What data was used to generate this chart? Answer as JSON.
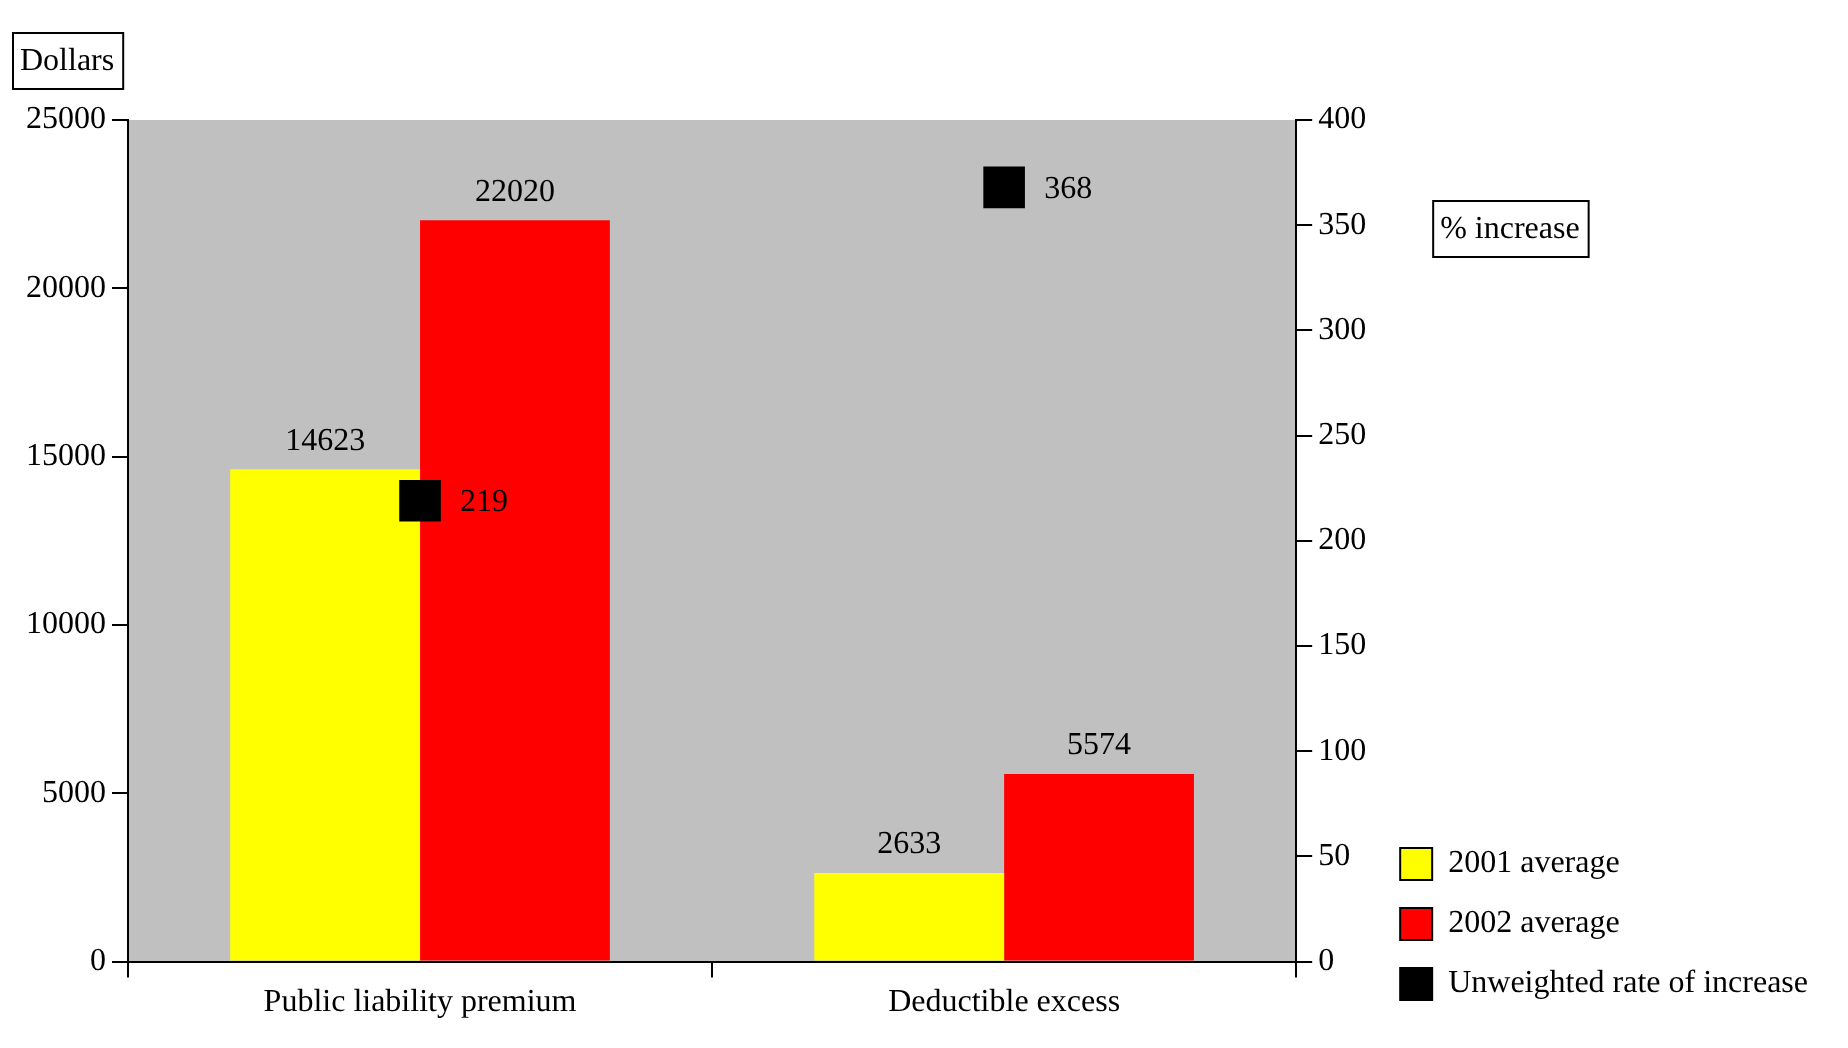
{
  "chart_data": {
    "type": "bar",
    "categories": [
      "Public liability premium",
      "Deductible excess"
    ],
    "ylabel": "Dollars",
    "y2label": "% increase",
    "series": [
      {
        "name": "2001 average",
        "color": "#ffff00",
        "values": [
          14623,
          2633
        ]
      },
      {
        "name": "2002 average",
        "color": "#ff0000",
        "values": [
          22020,
          5574
        ]
      },
      {
        "name": "Unweighted rate of increase",
        "color": "#000000",
        "type": "scatter",
        "axis": "y2",
        "marker": "square",
        "values": [
          219,
          368
        ]
      }
    ],
    "ylim": [
      0,
      25000
    ],
    "yticks": [
      0,
      5000,
      10000,
      15000,
      20000,
      25000
    ],
    "y2lim": [
      0,
      400
    ],
    "y2ticks": [
      0,
      50,
      100,
      150,
      200,
      250,
      300,
      350,
      400
    ],
    "data_labels": true,
    "grid": false,
    "legend": "bottom right"
  }
}
